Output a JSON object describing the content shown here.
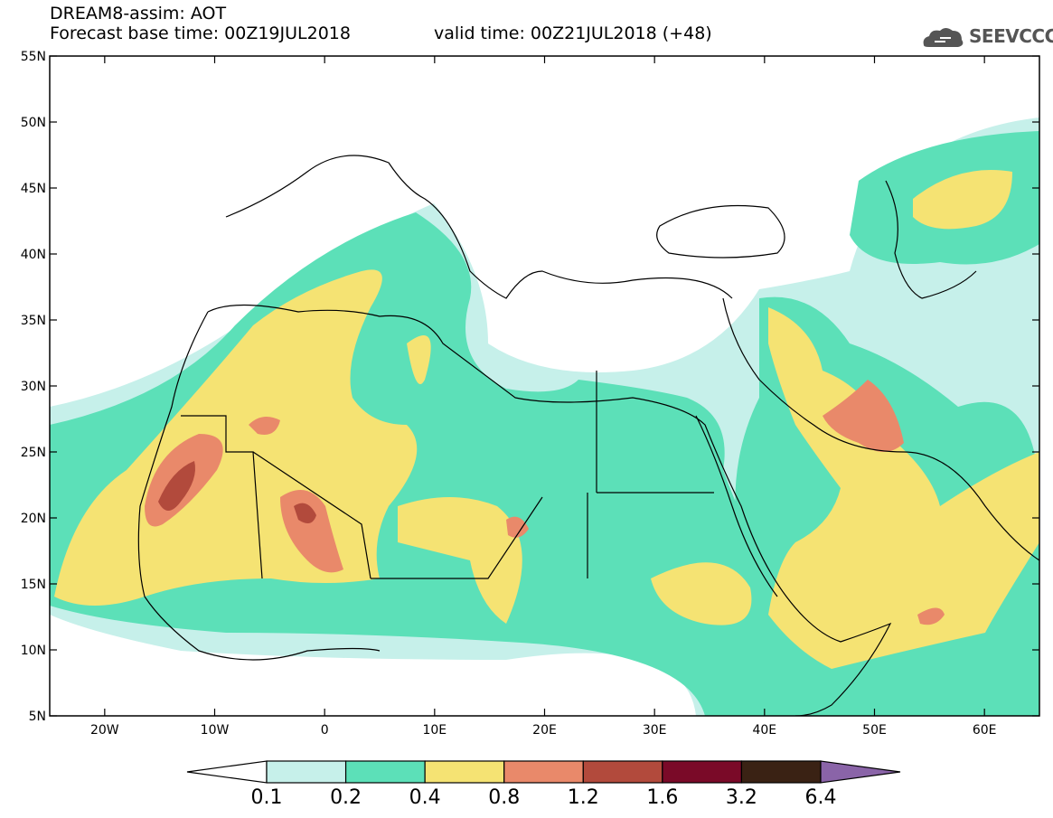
{
  "header": {
    "title": "DREAM8-assim: AOT",
    "base_time": "Forecast base time: 00Z19JUL2018",
    "valid_time": "valid time: 00Z21JUL2018 (+48)",
    "logo_text": "SEEVCCC",
    "logo_icon": "cloud-icon"
  },
  "map": {
    "lat_labels": [
      "55N",
      "50N",
      "45N",
      "40N",
      "35N",
      "30N",
      "25N",
      "20N",
      "15N",
      "10N",
      "5N"
    ],
    "lon_labels": [
      "20W",
      "10W",
      "0",
      "10E",
      "20E",
      "30E",
      "40E",
      "50E",
      "60E"
    ],
    "lon_range": [
      -25,
      65
    ],
    "lat_range": [
      5,
      55
    ]
  },
  "colorbar": {
    "labels": [
      "0.1",
      "0.2",
      "0.4",
      "0.8",
      "1.2",
      "1.6",
      "3.2",
      "6.4"
    ],
    "colors": [
      "#ffffff",
      "#c6f0ea",
      "#5ce0b8",
      "#f5e373",
      "#e9896a",
      "#b24a3c",
      "#7a0a28",
      "#3a2214",
      "#8a64a8"
    ]
  }
}
